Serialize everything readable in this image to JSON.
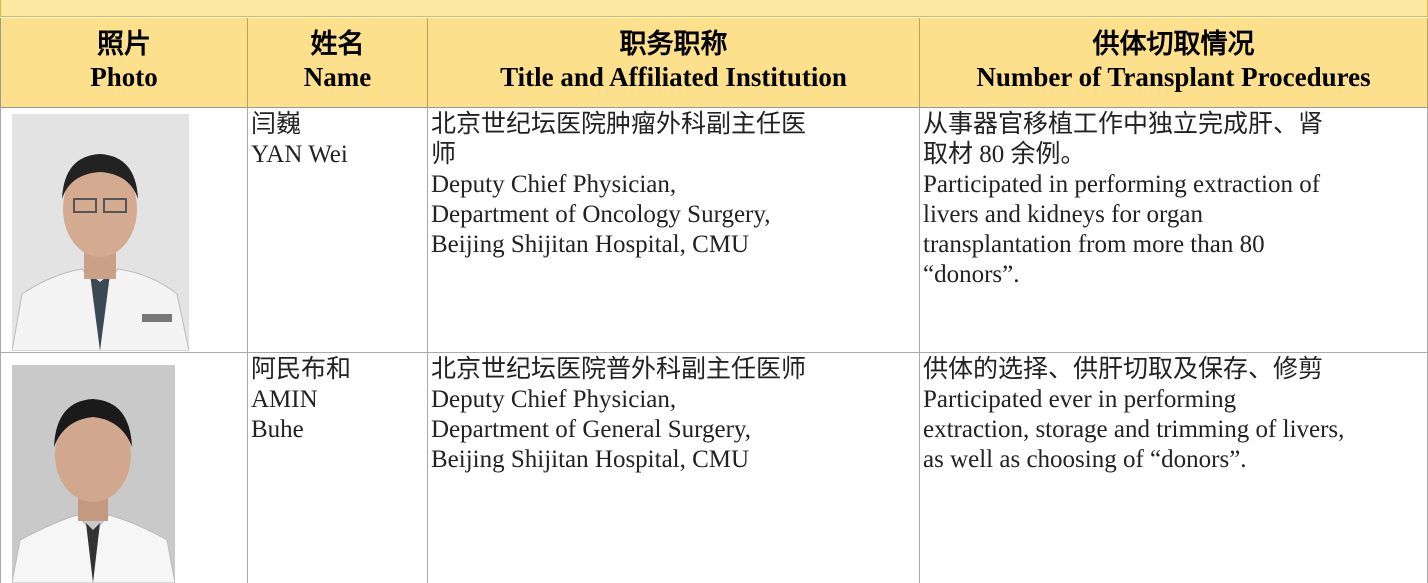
{
  "table": {
    "columns": [
      [
        "照片",
        "Photo"
      ],
      [
        "姓名",
        "Name"
      ],
      [
        "职务职称",
        "Title and Affiliated Institution"
      ],
      [
        "供体切取情况",
        "Number of Transplant Procedures"
      ]
    ],
    "rows": [
      {
        "cells": [
          [
            "闫巍",
            "YAN Wei"
          ],
          [
            "北京世纪坛医院肿瘤外科副主任医",
            "师",
            "Deputy Chief Physician,",
            "Department of Oncology Surgery,",
            "Beijing  Shijitan  Hospital, CMU"
          ],
          [
            "从事器官移植工作中独立完成肝、肾",
            "取材 80 余例。",
            "Participated in performing extraction of",
            "livers and kidneys for organ",
            "transplantation from more than 80",
            "“donors”."
          ]
        ]
      },
      {
        "cells": [
          [
            "阿民布和",
            "AMIN",
            "Buhe"
          ],
          [
            "北京世纪坛医院普外科副主任医师",
            "Deputy Chief Physician,",
            "Department of General Surgery,",
            "Beijing  Shijitan  Hospital, CMU"
          ],
          [
            "供体的选择、供肝切取及保存、修剪",
            "Participated ever in performing",
            "extraction, storage and trimming of livers,",
            "as well as choosing of “donors”."
          ]
        ]
      }
    ]
  }
}
